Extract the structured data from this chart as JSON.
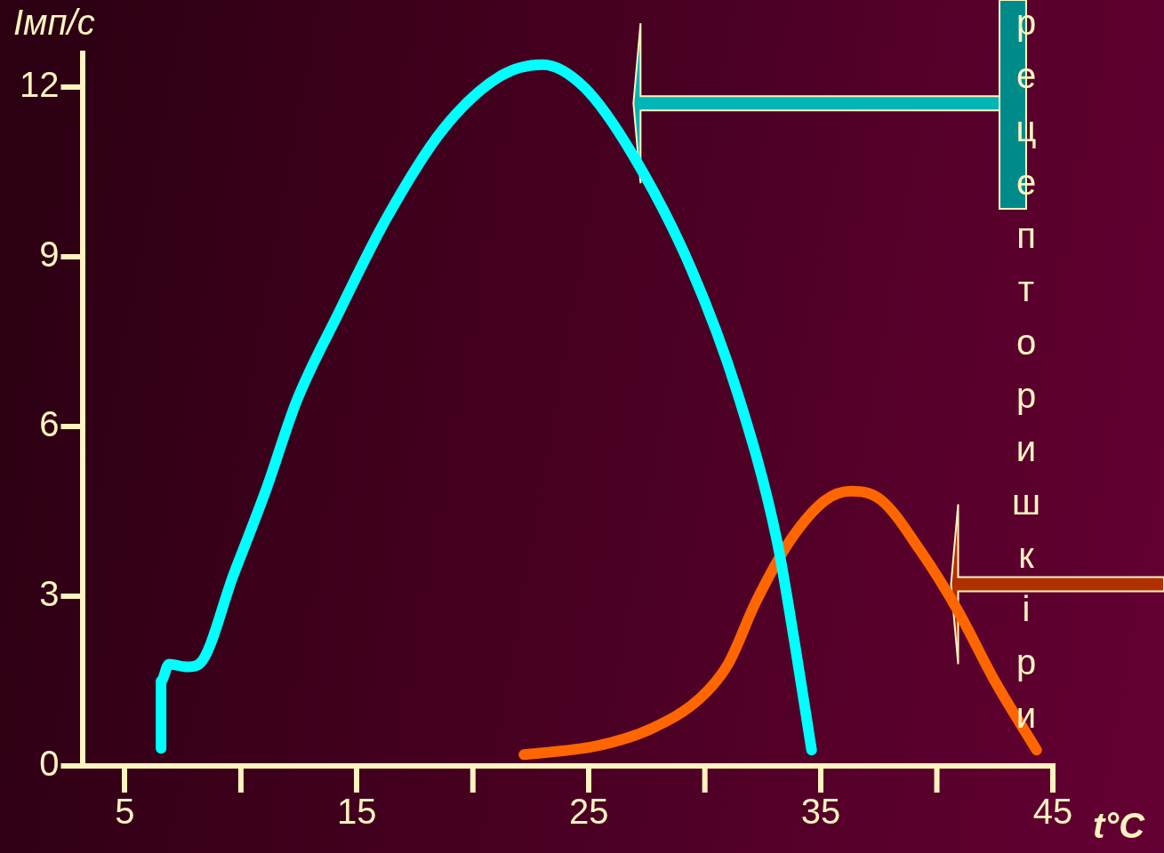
{
  "chart_data": {
    "type": "line",
    "xlabel": "t°C",
    "ylabel": "Імп/с",
    "xlim": [
      3.2,
      45
    ],
    "xticks": [
      5,
      15,
      25,
      35,
      45
    ],
    "ylim": [
      0,
      12.6
    ],
    "yticks": [
      0,
      3,
      6,
      9,
      12
    ],
    "grid": false,
    "legend": false,
    "annotations": [
      "рецептори шкіри"
    ],
    "series": [
      {
        "color": "#00ffff",
        "x": [
          6.56,
          6.56,
          6.9,
          7.7,
          8.2,
          9.7,
          11.1,
          12.4,
          14.2,
          16.3,
          18.7,
          21.2,
          23.0,
          24.8,
          26.9,
          29.4,
          31.4,
          33.1,
          33.9,
          34.6
        ],
        "values": [
          0.31,
          1.5,
          1.8,
          1.75,
          1.8,
          3.4,
          4.9,
          6.45,
          8.0,
          9.7,
          11.25,
          12.2,
          12.4,
          12.0,
          10.8,
          8.8,
          6.6,
          4.0,
          2.1,
          0.28
        ]
      },
      {
        "color": "#ff6600",
        "x": [
          22.2,
          25.3,
          27.7,
          29.8,
          31.0,
          32.2,
          33.7,
          35.2,
          36.3,
          37.6,
          39.3,
          40.9,
          42.5,
          44.3
        ],
        "values": [
          0.2,
          0.35,
          0.66,
          1.2,
          1.8,
          2.9,
          4.0,
          4.7,
          4.86,
          4.7,
          3.8,
          2.75,
          1.5,
          0.28
        ]
      }
    ]
  }
}
